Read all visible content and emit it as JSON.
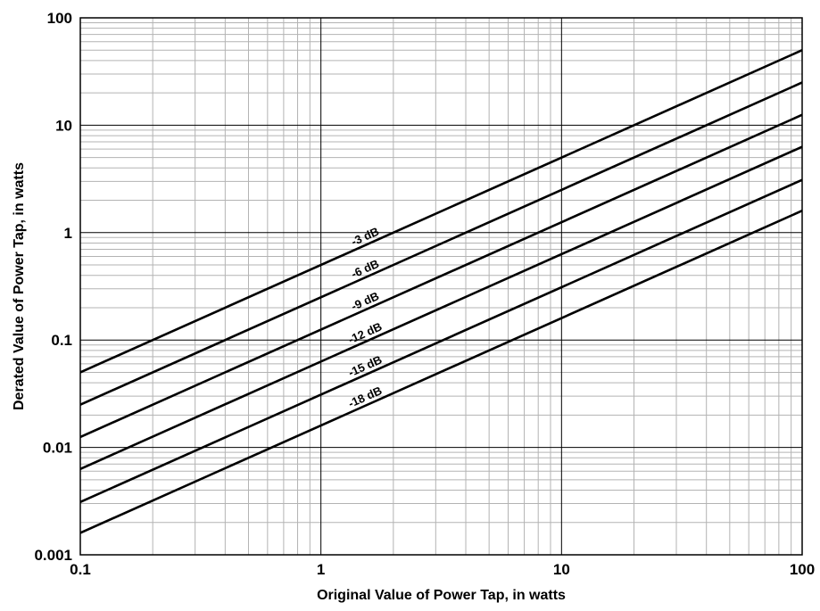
{
  "chart_data": {
    "type": "line",
    "title": "",
    "xlabel": "Original Value of Power Tap, in watts",
    "ylabel": "Derated Value of Power Tap, in watts",
    "x_scale": "log",
    "y_scale": "log",
    "xlim": [
      0.1,
      100
    ],
    "ylim": [
      0.001,
      100
    ],
    "x_ticks": [
      "0.1",
      "1",
      "10",
      "100"
    ],
    "y_ticks": [
      "0.001",
      "0.01",
      "0.1",
      "1",
      "10",
      "100"
    ],
    "grid": true,
    "series": [
      {
        "name": "-3 dB",
        "x": [
          0.1,
          100
        ],
        "y": [
          0.05,
          50
        ]
      },
      {
        "name": "-6 dB",
        "x": [
          0.1,
          100
        ],
        "y": [
          0.025,
          25
        ]
      },
      {
        "name": "-9 dB",
        "x": [
          0.1,
          100
        ],
        "y": [
          0.0125,
          12.5
        ]
      },
      {
        "name": "-12 dB",
        "x": [
          0.1,
          100
        ],
        "y": [
          0.0063,
          6.3
        ]
      },
      {
        "name": "-15 dB",
        "x": [
          0.1,
          100
        ],
        "y": [
          0.0031,
          3.1
        ]
      },
      {
        "name": "-18 dB",
        "x": [
          0.1,
          100
        ],
        "y": [
          0.0016,
          1.6
        ]
      }
    ]
  }
}
